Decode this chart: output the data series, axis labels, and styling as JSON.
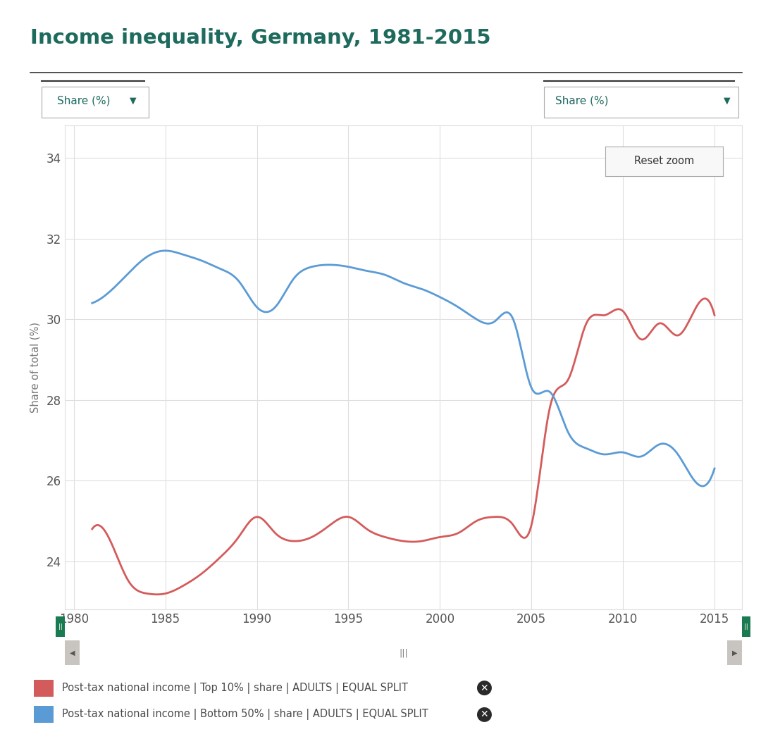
{
  "title": "Income inequality, Germany, 1981-2015",
  "teal_color": "#1e6b5e",
  "ylabel": "Share of total (%)",
  "ylim": [
    22.8,
    34.8
  ],
  "xlim": [
    1979.5,
    2016.5
  ],
  "yticks": [
    24,
    26,
    28,
    30,
    32,
    34
  ],
  "xticks": [
    1980,
    1985,
    1990,
    1995,
    2000,
    2005,
    2010,
    2015
  ],
  "bg_white": "#ffffff",
  "bg_gray": "#f5f5f0",
  "grid_color": "#e0dede",
  "red_color": "#d45b5b",
  "blue_color": "#5b9bd5",
  "red_series_x": [
    1981,
    1982,
    1983,
    1984,
    1985,
    1986,
    1987,
    1988,
    1989,
    1990,
    1991,
    1992,
    1993,
    1994,
    1995,
    1996,
    1997,
    1998,
    1999,
    2000,
    2001,
    2002,
    2003,
    2004,
    2005,
    2006,
    2007,
    2008,
    2009,
    2010,
    2011,
    2012,
    2013,
    2014,
    2015
  ],
  "red_series_y": [
    24.8,
    24.5,
    23.5,
    23.2,
    23.2,
    23.4,
    23.7,
    24.1,
    24.6,
    25.1,
    24.7,
    24.5,
    24.6,
    24.9,
    25.1,
    24.8,
    24.6,
    24.5,
    24.5,
    24.6,
    24.7,
    25.0,
    25.1,
    24.9,
    24.9,
    27.8,
    28.5,
    29.9,
    30.1,
    30.2,
    29.5,
    29.9,
    29.6,
    30.3,
    30.1
  ],
  "blue_series_x": [
    1981,
    1982,
    1983,
    1984,
    1985,
    1986,
    1987,
    1988,
    1989,
    1990,
    1991,
    1992,
    1993,
    1994,
    1995,
    1996,
    1997,
    1998,
    1999,
    2000,
    2001,
    2002,
    2003,
    2004,
    2005,
    2006,
    2007,
    2008,
    2009,
    2010,
    2011,
    2012,
    2013,
    2014,
    2015
  ],
  "blue_series_y": [
    30.4,
    30.7,
    31.15,
    31.55,
    31.7,
    31.6,
    31.45,
    31.25,
    30.95,
    30.3,
    30.3,
    31.0,
    31.3,
    31.35,
    31.3,
    31.2,
    31.1,
    30.9,
    30.75,
    30.55,
    30.3,
    30.0,
    29.95,
    30.0,
    28.3,
    28.2,
    27.2,
    26.8,
    26.65,
    26.7,
    26.6,
    26.9,
    26.65,
    25.95,
    26.3
  ],
  "share_label": "Share (%)",
  "reset_zoom_label": "Reset zoom",
  "legend_red_label": "Post-tax national income",
  "legend_red_bold": "Top 10%",
  "legend_blue_label": "Post-tax national income",
  "legend_blue_bold": "Bottom 50%",
  "legend_suffix": "share",
  "legend_adults": "ADULTS",
  "legend_equal": "EQUAL SPLIT"
}
